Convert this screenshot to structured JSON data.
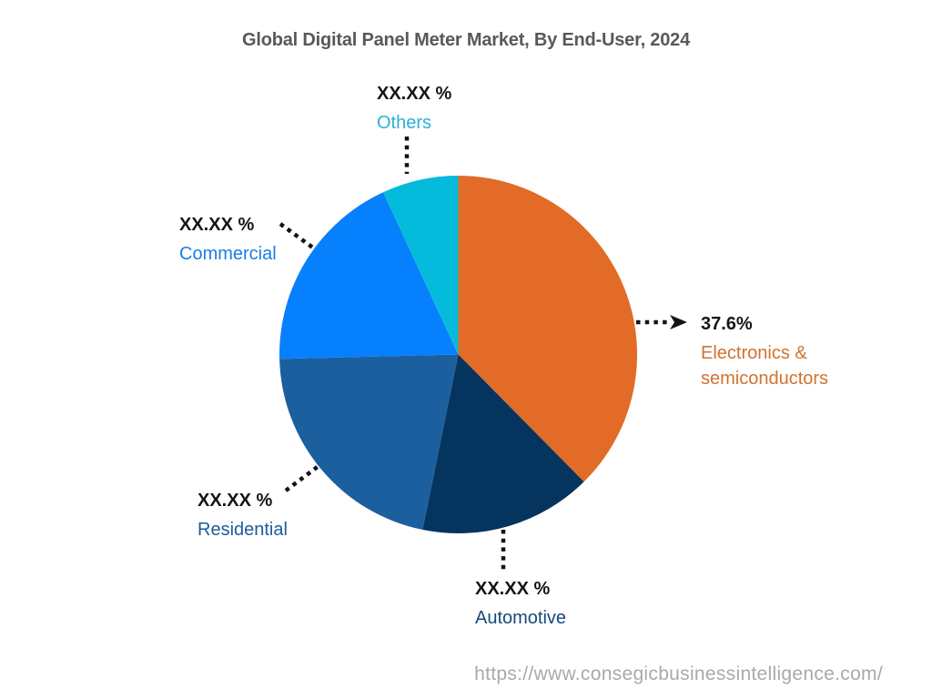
{
  "title": "Global Digital Panel Meter Market, By End-User, 2024",
  "footer": {
    "url": "https://www.consegicbusinessintelligence.com/"
  },
  "chart_data": {
    "type": "pie",
    "title": "Global Digital Panel Meter Market, By End-User, 2024",
    "start_angle_deg": 0,
    "direction": "clockwise",
    "legend_position": "callout-labels",
    "segments": [
      {
        "label": "Electronics & semiconductors",
        "value": 37.6,
        "percent_label": "37.6%",
        "color": "#e26b27",
        "label_color": "#d2722e"
      },
      {
        "label": "Automotive",
        "value": 15.6,
        "percent_label": "XX.XX %",
        "color": "#05345f",
        "label_color": "#17497c"
      },
      {
        "label": "Residential",
        "value": 21.4,
        "percent_label": "XX.XX %",
        "color": "#1c5f9e",
        "label_color": "#1d5c9a"
      },
      {
        "label": "Commercial",
        "value": 18.5,
        "percent_label": "XX.XX %",
        "color": "#0680fc",
        "label_color": "#1a7ee6"
      },
      {
        "label": "Others",
        "value": 6.9,
        "percent_label": "XX.XX %",
        "color": "#05bbdb",
        "label_color": "#2ab0d8"
      }
    ]
  }
}
